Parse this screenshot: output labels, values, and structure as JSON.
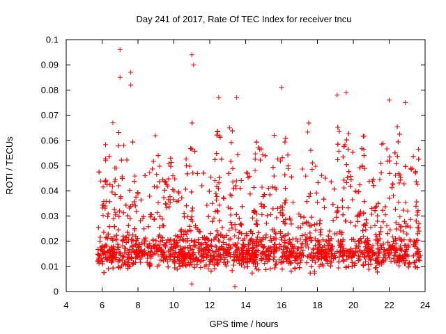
{
  "chart_data": {
    "type": "scatter",
    "title": "Day 241 of 2017, Rate Of TEC Index for receiver tncu",
    "xlabel": "GPS time / hours",
    "ylabel": "ROTI / TECUs",
    "xlim": [
      4,
      24
    ],
    "ylim": [
      0,
      0.1
    ],
    "xticks": [
      "4",
      "6",
      "8",
      "10",
      "12",
      "14",
      "16",
      "18",
      "20",
      "22",
      "24"
    ],
    "yticks": [
      "0",
      "0.01",
      "0.02",
      "0.03",
      "0.04",
      "0.05",
      "0.06",
      "0.07",
      "0.08",
      "0.09",
      "0.1"
    ],
    "grid": false,
    "legend": "none",
    "marker": "plus",
    "color": "#ff0000",
    "x_range_of_data": [
      5.75,
      23.75
    ],
    "notable_points": [
      {
        "x": 7.0,
        "y": 0.096
      },
      {
        "x": 11.0,
        "y": 0.094
      },
      {
        "x": 11.1,
        "y": 0.09
      },
      {
        "x": 7.6,
        "y": 0.087
      },
      {
        "x": 7.0,
        "y": 0.085
      },
      {
        "x": 7.6,
        "y": 0.082
      },
      {
        "x": 16.0,
        "y": 0.081
      },
      {
        "x": 19.6,
        "y": 0.079
      },
      {
        "x": 19.1,
        "y": 0.078
      },
      {
        "x": 12.5,
        "y": 0.077
      },
      {
        "x": 13.5,
        "y": 0.077
      },
      {
        "x": 22.0,
        "y": 0.076
      },
      {
        "x": 22.9,
        "y": 0.075
      },
      {
        "x": 13.1,
        "y": 0.065
      },
      {
        "x": 15.6,
        "y": 0.062
      },
      {
        "x": 6.6,
        "y": 0.067
      },
      {
        "x": 11.0,
        "y": 0.003
      },
      {
        "x": 13.4,
        "y": 0.002
      },
      {
        "x": 6.2,
        "y": 0.052
      },
      {
        "x": 20.5,
        "y": 0.05
      }
    ]
  }
}
